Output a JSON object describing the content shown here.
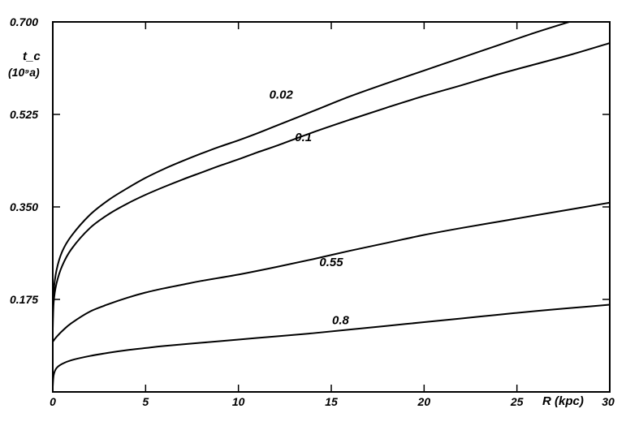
{
  "chart_data": {
    "type": "line",
    "xlabel": "R (kpc)",
    "ylabel": "t_c",
    "ylabel_unit": "(10⁹a)",
    "xlim": [
      0,
      30
    ],
    "ylim": [
      0,
      0.7
    ],
    "xticks": [
      0,
      5,
      10,
      15,
      20,
      25,
      30
    ],
    "xtick_labels": [
      "0",
      "5",
      "10",
      "15",
      "20",
      "25",
      "30"
    ],
    "yticks": [
      0.175,
      0.35,
      0.525,
      0.7
    ],
    "ytick_labels": [
      "0.175",
      "0.350",
      "0.525",
      "0.700"
    ],
    "grid": false,
    "legend": "none",
    "series": [
      {
        "label": "0.02",
        "label_at": [
          12.3,
          0.555
        ],
        "x": [
          0,
          0.05,
          0.2,
          0.5,
          1,
          2,
          3,
          4,
          5,
          6,
          7,
          8,
          9,
          10,
          11,
          12,
          14,
          16,
          18,
          20,
          22,
          24,
          26,
          28
        ],
        "y": [
          0.14,
          0.19,
          0.23,
          0.265,
          0.295,
          0.335,
          0.363,
          0.385,
          0.405,
          0.422,
          0.437,
          0.451,
          0.464,
          0.476,
          0.489,
          0.503,
          0.531,
          0.559,
          0.584,
          0.608,
          0.632,
          0.656,
          0.68,
          0.702
        ]
      },
      {
        "label": "0.1",
        "label_at": [
          13.5,
          0.474
        ],
        "x": [
          0,
          0.05,
          0.2,
          0.5,
          1,
          2,
          3,
          4,
          5,
          6,
          7,
          8,
          9,
          10,
          11,
          12,
          14,
          16,
          18,
          20,
          22,
          24,
          26,
          28,
          30
        ],
        "y": [
          0.12,
          0.17,
          0.205,
          0.238,
          0.27,
          0.31,
          0.336,
          0.356,
          0.373,
          0.388,
          0.402,
          0.415,
          0.428,
          0.44,
          0.453,
          0.465,
          0.491,
          0.515,
          0.538,
          0.56,
          0.58,
          0.601,
          0.62,
          0.639,
          0.66
        ]
      },
      {
        "label": "0.55",
        "label_at": [
          15.0,
          0.238
        ],
        "x": [
          0,
          0.2,
          0.5,
          1,
          2,
          3,
          4,
          5,
          6,
          7,
          8,
          10,
          12,
          14,
          16,
          18,
          20,
          22,
          24,
          26,
          28,
          30
        ],
        "y": [
          0.095,
          0.104,
          0.115,
          0.13,
          0.152,
          0.166,
          0.178,
          0.188,
          0.196,
          0.203,
          0.21,
          0.222,
          0.236,
          0.251,
          0.267,
          0.282,
          0.297,
          0.31,
          0.322,
          0.334,
          0.346,
          0.358
        ]
      },
      {
        "label": "0.8",
        "label_at": [
          15.5,
          0.128
        ],
        "x": [
          0,
          0.05,
          0.2,
          0.5,
          1,
          2,
          3,
          4,
          5,
          6,
          8,
          10,
          12,
          14,
          16,
          18,
          20,
          22,
          24,
          26,
          28,
          30
        ],
        "y": [
          0.01,
          0.032,
          0.045,
          0.053,
          0.06,
          0.068,
          0.074,
          0.079,
          0.083,
          0.087,
          0.093,
          0.099,
          0.105,
          0.111,
          0.118,
          0.125,
          0.132,
          0.139,
          0.146,
          0.153,
          0.159,
          0.165
        ]
      }
    ]
  }
}
